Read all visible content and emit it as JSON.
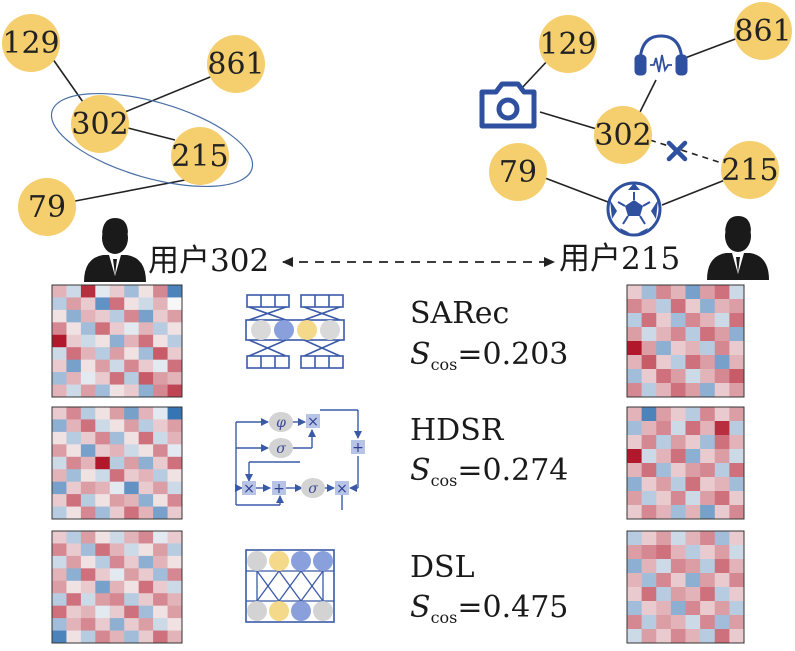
{
  "graph_left": {
    "nodes": [
      {
        "id": "n129",
        "label": "129"
      },
      {
        "id": "n861",
        "label": "861"
      },
      {
        "id": "n302",
        "label": "302"
      },
      {
        "id": "n215",
        "label": "215"
      },
      {
        "id": "n79",
        "label": "79"
      }
    ]
  },
  "graph_right": {
    "nodes": [
      {
        "id": "m129",
        "label": "129"
      },
      {
        "id": "m861",
        "label": "861"
      },
      {
        "id": "m302",
        "label": "302"
      },
      {
        "id": "m215",
        "label": "215"
      },
      {
        "id": "m79",
        "label": "79"
      }
    ],
    "icons": [
      "camera-icon",
      "headphones-icon",
      "soccer-ball-icon",
      "cross-icon"
    ]
  },
  "users": {
    "left": {
      "label": "用户302"
    },
    "right": {
      "label": "用户215"
    }
  },
  "models": [
    {
      "name": "SARec",
      "score_symbol": "S",
      "score_sub": "cos",
      "score_value": "=0.203"
    },
    {
      "name": "HDSR",
      "score_symbol": "S",
      "score_sub": "cos",
      "score_value": "=0.274"
    },
    {
      "name": "DSL",
      "score_symbol": "S",
      "score_sub": "cos",
      "score_value": "=0.475"
    }
  ],
  "arch": {
    "hdsr_phi": "φ",
    "hdsr_sigma": "σ",
    "hdsr_times": "×",
    "hdsr_plus": "+"
  },
  "colors": {
    "node_fill": "#f5cf6e",
    "edge": "#222222",
    "accent_blue": "#2f4f9f",
    "heat_red": "#b2182b",
    "heat_blue": "#2166ac"
  },
  "heatmaps": {
    "left": [
      [
        0.3,
        -0.2,
        0.9,
        -0.1,
        0.2,
        -0.4,
        0.1,
        0.5,
        -0.8
      ],
      [
        -0.3,
        0.4,
        0.2,
        -0.7,
        0.6,
        0.1,
        -0.2,
        0.3,
        0.0
      ],
      [
        0.1,
        -0.5,
        0.3,
        0.2,
        -0.3,
        0.5,
        -0.6,
        0.2,
        0.4
      ],
      [
        0.5,
        0.1,
        -0.4,
        0.6,
        0.2,
        -0.1,
        0.3,
        -0.3,
        0.1
      ],
      [
        1.0,
        0.2,
        -0.2,
        0.1,
        -0.5,
        0.3,
        0.6,
        0.1,
        -0.3
      ],
      [
        -0.2,
        0.6,
        0.3,
        -0.3,
        0.4,
        0.1,
        -0.4,
        0.7,
        0.2
      ],
      [
        0.2,
        -0.6,
        0.1,
        0.4,
        -0.2,
        0.5,
        0.2,
        -0.1,
        0.6
      ],
      [
        -0.4,
        0.3,
        -0.1,
        0.2,
        0.6,
        -0.3,
        0.7,
        0.4,
        0.3
      ],
      [
        0.3,
        -0.2,
        0.4,
        -0.4,
        0.1,
        0.2,
        -0.5,
        0.5,
        0.8
      ]
    ],
    "left2": [
      [
        0.2,
        0.5,
        -0.3,
        0.1,
        0.4,
        -0.6,
        0.3,
        -0.1,
        -0.9
      ],
      [
        -0.5,
        0.3,
        0.6,
        -0.2,
        0.1,
        0.4,
        -0.3,
        0.2,
        0.4
      ],
      [
        0.1,
        -0.3,
        0.2,
        0.5,
        -0.4,
        0.1,
        0.6,
        -0.2,
        0.3
      ],
      [
        0.4,
        0.1,
        -0.6,
        0.2,
        0.3,
        -0.2,
        0.1,
        0.5,
        -0.1
      ],
      [
        -0.2,
        0.5,
        0.3,
        1.0,
        -0.3,
        0.4,
        -0.5,
        0.2,
        0.6
      ],
      [
        0.3,
        -0.4,
        0.1,
        -0.2,
        0.6,
        0.2,
        0.3,
        -0.3,
        0.1
      ],
      [
        -0.6,
        0.2,
        0.4,
        0.3,
        -0.1,
        -0.7,
        0.2,
        0.4,
        -0.2
      ],
      [
        0.2,
        0.6,
        -0.3,
        0.1,
        0.4,
        0.3,
        -0.5,
        0.1,
        0.5
      ],
      [
        -0.3,
        0.1,
        0.5,
        -0.4,
        0.2,
        0.6,
        0.3,
        -0.6,
        0.2
      ]
    ],
    "left3": [
      [
        0.2,
        -0.3,
        0.4,
        0.1,
        -0.2,
        0.3,
        0.5,
        -0.1,
        0.2
      ],
      [
        0.5,
        0.2,
        -0.4,
        0.6,
        0.3,
        -0.2,
        0.1,
        0.4,
        -0.3
      ],
      [
        -0.2,
        0.4,
        0.1,
        -0.3,
        0.5,
        0.2,
        -0.5,
        0.3,
        0.1
      ],
      [
        0.3,
        -0.5,
        0.6,
        0.2,
        -0.1,
        0.4,
        0.2,
        -0.4,
        0.5
      ],
      [
        0.4,
        0.1,
        0.2,
        -0.6,
        0.3,
        0.1,
        0.6,
        0.2,
        -0.2
      ],
      [
        -0.3,
        0.6,
        -0.2,
        0.4,
        0.5,
        -0.3,
        0.2,
        0.5,
        0.3
      ],
      [
        0.6,
        0.2,
        0.3,
        -0.1,
        0.2,
        0.6,
        -0.4,
        0.1,
        0.4
      ],
      [
        -0.4,
        0.3,
        0.5,
        0.2,
        -0.5,
        0.2,
        0.4,
        -0.2,
        0.1
      ],
      [
        -0.8,
        0.1,
        -0.3,
        0.5,
        0.3,
        -0.4,
        0.2,
        0.6,
        0.3
      ]
    ],
    "right": [
      [
        0.2,
        -0.4,
        0.5,
        0.3,
        -0.6,
        0.4,
        0.6,
        -0.2
      ],
      [
        0.5,
        0.3,
        -0.3,
        0.6,
        0.2,
        -0.5,
        0.3,
        0.4
      ],
      [
        -0.3,
        0.6,
        0.2,
        -0.4,
        0.5,
        0.3,
        -0.2,
        0.6
      ],
      [
        0.4,
        -0.2,
        0.3,
        0.5,
        -0.3,
        0.6,
        0.4,
        -0.5
      ],
      [
        1.0,
        0.4,
        -0.5,
        0.2,
        0.3,
        -0.3,
        0.5,
        0.2
      ],
      [
        0.3,
        0.7,
        0.2,
        -0.3,
        0.6,
        0.4,
        -0.6,
        0.3
      ],
      [
        -0.4,
        0.2,
        0.6,
        0.4,
        -0.2,
        0.3,
        0.5,
        0.7
      ],
      [
        0.5,
        -0.3,
        0.3,
        0.6,
        0.4,
        -0.5,
        0.2,
        0.4
      ]
    ],
    "right2": [
      [
        0.3,
        -0.8,
        0.4,
        0.2,
        -0.3,
        0.5,
        0.2,
        0.4
      ],
      [
        -0.4,
        0.3,
        0.5,
        -0.2,
        0.6,
        0.3,
        0.9,
        -0.3
      ],
      [
        0.2,
        0.5,
        -0.3,
        0.4,
        0.2,
        -0.4,
        0.6,
        0.3
      ],
      [
        1.0,
        -0.2,
        0.3,
        0.6,
        -0.5,
        0.2,
        0.4,
        -0.2
      ],
      [
        0.3,
        0.6,
        -0.4,
        0.2,
        0.4,
        0.5,
        -0.3,
        0.6
      ],
      [
        -0.5,
        0.2,
        0.4,
        -0.3,
        0.6,
        0.2,
        0.3,
        -0.4
      ],
      [
        0.4,
        -0.3,
        0.2,
        0.5,
        -0.2,
        0.4,
        0.6,
        0.2
      ],
      [
        0.2,
        0.5,
        0.3,
        -0.4,
        0.3,
        -0.6,
        0.2,
        0.5
      ]
    ],
    "right3": [
      [
        -0.3,
        0.2,
        0.4,
        -0.2,
        0.3,
        0.5,
        -0.4,
        0.2
      ],
      [
        0.4,
        0.5,
        0.6,
        0.3,
        -0.3,
        0.2,
        0.4,
        -0.2
      ],
      [
        -0.5,
        0.3,
        -0.2,
        0.5,
        0.4,
        -0.3,
        0.6,
        0.3
      ],
      [
        0.3,
        -0.4,
        0.5,
        0.2,
        -0.5,
        0.4,
        0.2,
        0.5
      ],
      [
        0.2,
        0.6,
        -0.3,
        0.4,
        0.3,
        0.6,
        -0.3,
        0.2
      ],
      [
        -0.4,
        0.2,
        0.3,
        -0.5,
        0.5,
        0.2,
        0.4,
        -0.3
      ],
      [
        0.5,
        -0.3,
        0.4,
        0.3,
        -0.2,
        0.5,
        -0.4,
        0.4
      ],
      [
        -0.2,
        0.4,
        0.2,
        0.5,
        0.3,
        -0.3,
        0.6,
        0.2
      ]
    ]
  }
}
